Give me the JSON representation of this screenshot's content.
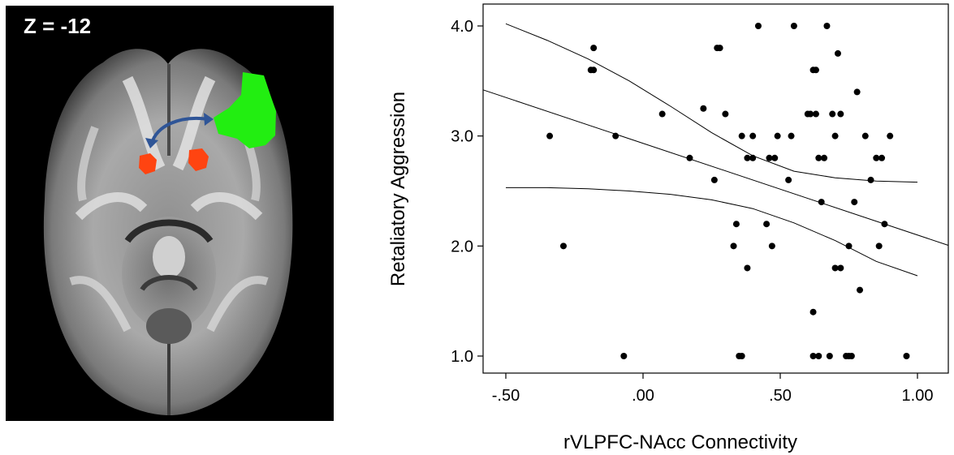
{
  "brain_image": {
    "slice_label": "Z = -12"
  },
  "colors": {
    "background": "#ffffff",
    "brain_bg": "#000000",
    "vlpfc_region": "#22ee11",
    "nacc_region": "#ff4411",
    "arrow": "#2f5597",
    "points": "#000000",
    "lines": "#000000"
  },
  "chart_data": {
    "type": "scatter",
    "xlabel": "rVLPFC-NAcc Connectivity",
    "ylabel": "Retaliatory Aggression",
    "xlim": [
      -0.5,
      1.0
    ],
    "ylim": [
      1.0,
      4.0
    ],
    "x_ticks": [
      -0.5,
      0.0,
      0.5,
      1.0
    ],
    "x_tick_labels": [
      "-.50",
      ".00",
      ".50",
      "1.00"
    ],
    "y_ticks": [
      1.0,
      2.0,
      3.0,
      4.0
    ],
    "y_tick_labels": [
      "1.0",
      "2.0",
      "3.0",
      "4.0"
    ],
    "points": [
      [
        -0.34,
        3.0
      ],
      [
        -0.29,
        2.0
      ],
      [
        -0.19,
        3.6
      ],
      [
        -0.18,
        3.6
      ],
      [
        -0.18,
        3.8
      ],
      [
        -0.1,
        3.0
      ],
      [
        -0.07,
        1.0
      ],
      [
        0.07,
        3.2
      ],
      [
        0.17,
        2.8
      ],
      [
        0.22,
        3.25
      ],
      [
        0.26,
        2.6
      ],
      [
        0.27,
        3.8
      ],
      [
        0.28,
        3.8
      ],
      [
        0.3,
        3.2
      ],
      [
        0.33,
        2.0
      ],
      [
        0.34,
        2.2
      ],
      [
        0.35,
        1.0
      ],
      [
        0.36,
        1.0
      ],
      [
        0.36,
        3.0
      ],
      [
        0.38,
        2.8
      ],
      [
        0.38,
        1.8
      ],
      [
        0.4,
        3.0
      ],
      [
        0.4,
        2.8
      ],
      [
        0.42,
        4.0
      ],
      [
        0.45,
        2.2
      ],
      [
        0.46,
        2.8
      ],
      [
        0.47,
        2.0
      ],
      [
        0.48,
        2.8
      ],
      [
        0.49,
        3.0
      ],
      [
        0.53,
        2.6
      ],
      [
        0.54,
        3.0
      ],
      [
        0.55,
        4.0
      ],
      [
        0.6,
        3.2
      ],
      [
        0.61,
        3.2
      ],
      [
        0.62,
        3.6
      ],
      [
        0.63,
        3.6
      ],
      [
        0.62,
        1.4
      ],
      [
        0.63,
        3.2
      ],
      [
        0.62,
        1.0
      ],
      [
        0.64,
        1.0
      ],
      [
        0.64,
        2.8
      ],
      [
        0.65,
        2.4
      ],
      [
        0.66,
        2.8
      ],
      [
        0.67,
        4.0
      ],
      [
        0.68,
        1.0
      ],
      [
        0.69,
        3.2
      ],
      [
        0.7,
        3.0
      ],
      [
        0.7,
        1.8
      ],
      [
        0.71,
        3.75
      ],
      [
        0.72,
        3.2
      ],
      [
        0.72,
        1.8
      ],
      [
        0.74,
        1.0
      ],
      [
        0.75,
        1.0
      ],
      [
        0.76,
        1.0
      ],
      [
        0.75,
        2.0
      ],
      [
        0.77,
        2.4
      ],
      [
        0.78,
        3.4
      ],
      [
        0.79,
        1.6
      ],
      [
        0.81,
        3.0
      ],
      [
        0.83,
        2.6
      ],
      [
        0.85,
        2.8
      ],
      [
        0.86,
        2.0
      ],
      [
        0.87,
        2.8
      ],
      [
        0.88,
        2.2
      ],
      [
        0.9,
        3.0
      ],
      [
        0.96,
        1.0
      ]
    ],
    "fit_line": {
      "x": [
        -0.5,
        1.0
      ],
      "y": [
        3.35,
        2.1
      ]
    },
    "ci_upper": {
      "x": [
        -0.5,
        -0.35,
        -0.2,
        -0.05,
        0.1,
        0.25,
        0.4,
        0.55,
        0.7,
        0.85,
        1.0
      ],
      "y": [
        4.02,
        3.87,
        3.7,
        3.5,
        3.27,
        3.03,
        2.82,
        2.68,
        2.62,
        2.59,
        2.58
      ]
    },
    "ci_lower": {
      "x": [
        -0.5,
        -0.35,
        -0.2,
        -0.05,
        0.1,
        0.25,
        0.4,
        0.55,
        0.7,
        0.85,
        1.0
      ],
      "y": [
        2.53,
        2.53,
        2.52,
        2.5,
        2.47,
        2.42,
        2.34,
        2.21,
        2.05,
        1.86,
        1.73
      ]
    }
  }
}
